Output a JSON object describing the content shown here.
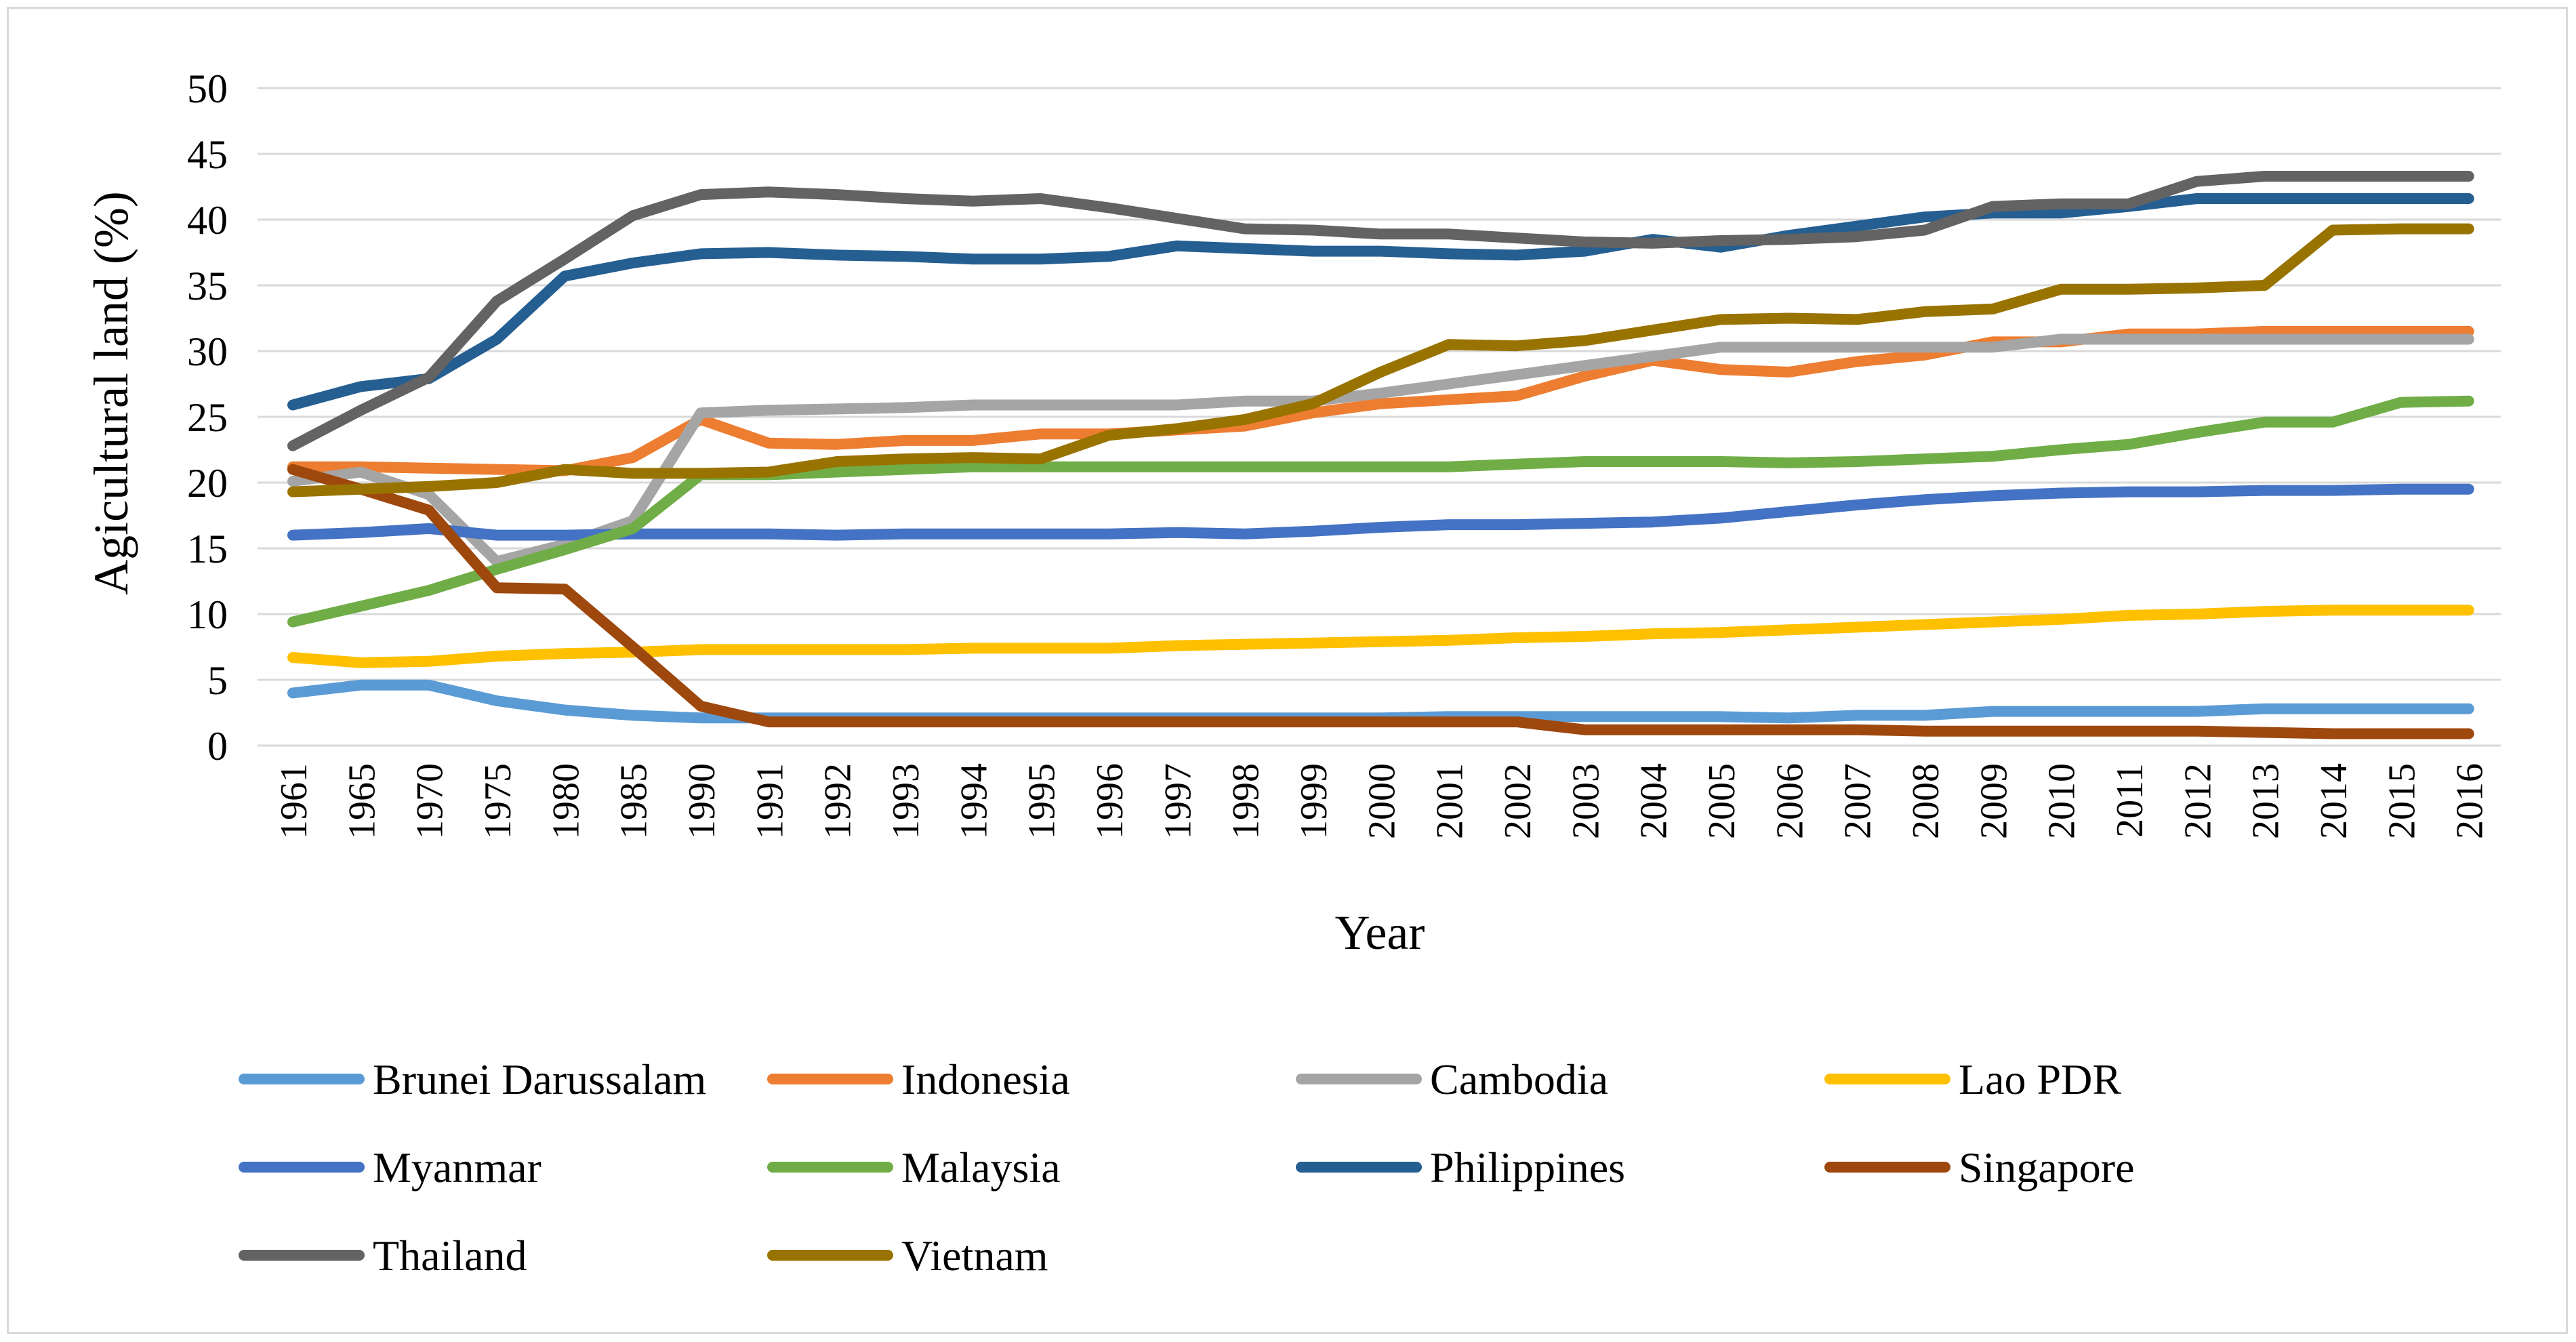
{
  "chart_data": {
    "type": "line",
    "title": "",
    "xlabel": "Year",
    "ylabel": "Agicultural land (%)",
    "ylim": [
      0,
      50
    ],
    "yticks": [
      0,
      5,
      10,
      15,
      20,
      25,
      30,
      35,
      40,
      45,
      50
    ],
    "grid": true,
    "legend_position": "bottom",
    "categories": [
      "1961",
      "1965",
      "1970",
      "1975",
      "1980",
      "1985",
      "1990",
      "1991",
      "1992",
      "1993",
      "1994",
      "1995",
      "1996",
      "1997",
      "1998",
      "1999",
      "2000",
      "2001",
      "2002",
      "2003",
      "2004",
      "2005",
      "2006",
      "2007",
      "2008",
      "2009",
      "2010",
      "2011",
      "2012",
      "2013",
      "2014",
      "2015",
      "2016"
    ],
    "series": [
      {
        "name": "Brunei Darussalam",
        "color": "#5b9bd5",
        "values": [
          4.0,
          4.6,
          4.6,
          3.4,
          2.7,
          2.3,
          2.1,
          2.1,
          2.1,
          2.1,
          2.1,
          2.1,
          2.1,
          2.1,
          2.1,
          2.1,
          2.1,
          2.2,
          2.2,
          2.2,
          2.2,
          2.2,
          2.1,
          2.3,
          2.3,
          2.6,
          2.6,
          2.6,
          2.6,
          2.8,
          2.8,
          2.8,
          2.8
        ]
      },
      {
        "name": "Indonesia",
        "color": "#ed7d31",
        "values": [
          21.2,
          21.2,
          21.1,
          21.0,
          20.9,
          21.9,
          24.8,
          23.0,
          22.9,
          23.2,
          23.2,
          23.7,
          23.7,
          24.0,
          24.3,
          25.3,
          26.0,
          26.3,
          26.6,
          28.1,
          29.3,
          28.6,
          28.4,
          29.2,
          29.7,
          30.7,
          30.7,
          31.3,
          31.3,
          31.5,
          31.5,
          31.5,
          31.5
        ]
      },
      {
        "name": "Cambodia",
        "color": "#a5a5a5",
        "values": [
          20.1,
          20.8,
          19.1,
          14.0,
          15.3,
          17.1,
          25.3,
          25.5,
          25.6,
          25.7,
          25.9,
          25.9,
          25.9,
          25.9,
          26.2,
          26.2,
          26.8,
          27.5,
          28.2,
          28.9,
          29.6,
          30.3,
          30.3,
          30.3,
          30.3,
          30.3,
          30.9,
          30.9,
          30.9,
          30.9,
          30.9,
          30.9,
          30.9
        ]
      },
      {
        "name": "Lao PDR",
        "color": "#ffc000",
        "values": [
          6.7,
          6.3,
          6.4,
          6.8,
          7.0,
          7.1,
          7.3,
          7.3,
          7.3,
          7.3,
          7.4,
          7.4,
          7.4,
          7.6,
          7.7,
          7.8,
          7.9,
          8.0,
          8.2,
          8.3,
          8.5,
          8.6,
          8.8,
          9.0,
          9.2,
          9.4,
          9.6,
          9.9,
          10.0,
          10.2,
          10.3,
          10.3,
          10.3
        ]
      },
      {
        "name": "Myanmar",
        "color": "#4472c4",
        "values": [
          16.0,
          16.2,
          16.5,
          16.0,
          16.0,
          16.1,
          16.1,
          16.1,
          16.0,
          16.1,
          16.1,
          16.1,
          16.1,
          16.2,
          16.1,
          16.3,
          16.6,
          16.8,
          16.8,
          16.9,
          17.0,
          17.3,
          17.8,
          18.3,
          18.7,
          19.0,
          19.2,
          19.3,
          19.3,
          19.4,
          19.4,
          19.5,
          19.5
        ]
      },
      {
        "name": "Malaysia",
        "color": "#70ad47",
        "values": [
          9.4,
          10.6,
          11.8,
          13.4,
          14.9,
          16.5,
          20.6,
          20.6,
          20.8,
          21.0,
          21.2,
          21.2,
          21.2,
          21.2,
          21.2,
          21.2,
          21.2,
          21.2,
          21.4,
          21.6,
          21.6,
          21.6,
          21.5,
          21.6,
          21.8,
          22.0,
          22.5,
          22.9,
          23.8,
          24.6,
          24.6,
          26.1,
          26.2
        ]
      },
      {
        "name": "Philippines",
        "color": "#255e91",
        "values": [
          25.9,
          27.3,
          27.9,
          30.9,
          35.7,
          36.7,
          37.4,
          37.5,
          37.3,
          37.2,
          37.0,
          37.0,
          37.2,
          38.0,
          37.8,
          37.6,
          37.6,
          37.4,
          37.3,
          37.6,
          38.5,
          37.9,
          38.8,
          39.5,
          40.2,
          40.5,
          40.5,
          41.0,
          41.6,
          41.6,
          41.6,
          41.6,
          41.6
        ]
      },
      {
        "name": "Singapore",
        "color": "#9e480e",
        "values": [
          21.0,
          19.5,
          17.9,
          12.0,
          11.9,
          7.5,
          3.0,
          1.8,
          1.8,
          1.8,
          1.8,
          1.8,
          1.8,
          1.8,
          1.8,
          1.8,
          1.8,
          1.8,
          1.8,
          1.2,
          1.2,
          1.2,
          1.2,
          1.2,
          1.1,
          1.1,
          1.1,
          1.1,
          1.1,
          1.0,
          0.9,
          0.9,
          0.9
        ]
      },
      {
        "name": "Thailand",
        "color": "#636363",
        "values": [
          22.8,
          25.5,
          28.0,
          33.8,
          37.0,
          40.3,
          41.9,
          42.1,
          41.9,
          41.6,
          41.4,
          41.6,
          40.9,
          40.1,
          39.3,
          39.2,
          38.9,
          38.9,
          38.6,
          38.3,
          38.2,
          38.4,
          38.5,
          38.7,
          39.2,
          41.0,
          41.2,
          41.2,
          42.9,
          43.3,
          43.3,
          43.3,
          43.3
        ]
      },
      {
        "name": "Vietnam",
        "color": "#997300",
        "values": [
          19.3,
          19.5,
          19.7,
          20.0,
          21.0,
          20.7,
          20.7,
          20.8,
          21.6,
          21.8,
          21.9,
          21.8,
          23.6,
          24.1,
          24.8,
          26.0,
          28.4,
          30.5,
          30.4,
          30.8,
          31.6,
          32.4,
          32.5,
          32.4,
          33.0,
          33.2,
          34.7,
          34.7,
          34.8,
          35.0,
          39.2,
          39.3,
          39.3
        ]
      }
    ]
  }
}
